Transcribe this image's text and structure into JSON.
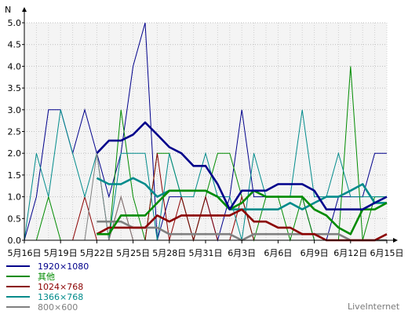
{
  "chart_data": {
    "type": "line",
    "ylabel": "N",
    "ylim": [
      0,
      5
    ],
    "y_ticks": [
      "0.0",
      "0.5",
      "1.0",
      "1.5",
      "2.0",
      "2.5",
      "3.0",
      "3.5",
      "4.0",
      "4.5",
      "5.0"
    ],
    "x": [
      "5月16日",
      "5月17日",
      "5月18日",
      "5月19日",
      "5月20日",
      "5月21日",
      "5月22日",
      "5月23日",
      "5月24日",
      "5月25日",
      "5月26日",
      "5月27日",
      "5月28日",
      "5月29日",
      "5月30日",
      "5月31日",
      "6月1日",
      "6月2日",
      "6月3日",
      "6月4日",
      "6月5日",
      "6月6日",
      "6月7日",
      "6月8日",
      "6月9日",
      "6月10日",
      "6月11日",
      "6月12日",
      "6月13日",
      "6月14日",
      "6月15日"
    ],
    "x_tick_labels": [
      {
        "index": 0,
        "label": "5月16日"
      },
      {
        "index": 3,
        "label": "5月19日"
      },
      {
        "index": 6,
        "label": "5月22日"
      },
      {
        "index": 9,
        "label": "5月25日"
      },
      {
        "index": 12,
        "label": "5月28日"
      },
      {
        "index": 15,
        "label": "5月31日"
      },
      {
        "index": 18,
        "label": "6月3日"
      },
      {
        "index": 21,
        "label": "6月6日"
      },
      {
        "index": 24,
        "label": "6月9日"
      },
      {
        "index": 27,
        "label": "6月12日"
      },
      {
        "index": 30,
        "label": "6月15日"
      }
    ],
    "grid": true,
    "background": "#f4f4f4",
    "watermark": "LiveInternet",
    "series": [
      {
        "name": "1920×1080",
        "color": "#00008b",
        "daily": [
          0,
          1,
          3,
          3,
          2,
          3,
          2,
          1,
          2,
          4,
          5,
          0,
          1,
          1,
          0,
          1,
          0,
          1,
          3,
          1,
          1,
          1,
          1,
          1,
          0,
          0,
          1,
          1,
          1,
          2,
          2
        ],
        "avg_start": 6,
        "avg": [
          2.0,
          2.29,
          2.29,
          2.43,
          2.71,
          2.43,
          2.14,
          2.0,
          1.71,
          1.71,
          1.29,
          0.71,
          1.14,
          1.14,
          1.14,
          1.29,
          1.29,
          1.29,
          1.14,
          0.71,
          0.71,
          0.71,
          0.71,
          0.86,
          1.0
        ]
      },
      {
        "name": "其他",
        "color": "#008b00",
        "daily": [
          0,
          0,
          1,
          0,
          0,
          0,
          0,
          0,
          3,
          1,
          0,
          2,
          2,
          1,
          0,
          1,
          2,
          2,
          1,
          0,
          1,
          1,
          0,
          1,
          0,
          0,
          0,
          4,
          0,
          1,
          1
        ],
        "avg_start": 6,
        "avg": [
          0.14,
          0.14,
          0.57,
          0.57,
          0.57,
          0.86,
          1.14,
          1.14,
          1.14,
          1.14,
          1.0,
          0.71,
          0.86,
          1.14,
          1.0,
          1.0,
          1.0,
          1.0,
          0.71,
          0.57,
          0.29,
          0.14,
          0.71,
          0.71,
          0.86
        ]
      },
      {
        "name": "1024×768",
        "color": "#8b0000",
        "daily": [
          0,
          0,
          0,
          0,
          0,
          1,
          0,
          0,
          1,
          0,
          0,
          2,
          0,
          1,
          0,
          1,
          0,
          0,
          1,
          0,
          0,
          0,
          0,
          0,
          0,
          0,
          0,
          0,
          0,
          0,
          0
        ],
        "avg_start": 6,
        "avg": [
          0.14,
          0.29,
          0.29,
          0.29,
          0.29,
          0.57,
          0.43,
          0.57,
          0.57,
          0.57,
          0.57,
          0.57,
          0.71,
          0.43,
          0.43,
          0.29,
          0.29,
          0.14,
          0.14,
          0.0,
          0.0,
          0.0,
          0.0,
          0.0,
          0.14
        ]
      },
      {
        "name": "1366×768",
        "color": "#008b8b",
        "daily": [
          0,
          2,
          1,
          3,
          2,
          1,
          2,
          0,
          2,
          2,
          2,
          0,
          2,
          1,
          1,
          2,
          1,
          1,
          0,
          2,
          1,
          1,
          1,
          3,
          1,
          1,
          2,
          1,
          1,
          1,
          1
        ],
        "avg_start": 6,
        "avg": [
          1.43,
          1.29,
          1.29,
          1.43,
          1.29,
          1.0,
          1.14,
          1.14,
          1.14,
          1.14,
          1.0,
          0.71,
          0.71,
          0.71,
          0.71,
          0.71,
          0.86,
          0.71,
          0.86,
          1.0,
          1.0,
          1.14,
          1.29,
          0.86,
          0.86
        ]
      },
      {
        "name": "800×600",
        "color": "#808080",
        "daily": [
          0,
          0,
          0,
          0,
          0,
          0,
          2,
          0,
          1,
          0,
          0,
          0,
          0,
          0,
          0,
          0,
          0,
          0,
          0,
          0,
          0,
          0,
          0,
          0,
          0,
          0,
          0,
          0,
          0,
          0,
          0
        ],
        "avg_start": 6,
        "avg": [
          0.43,
          0.43,
          0.43,
          0.29,
          0.29,
          0.29,
          0.14,
          0.14,
          0.14,
          0.14,
          0.14,
          0.14,
          0.0,
          0.14,
          0.14,
          0.14,
          0.14,
          0.14,
          0.14,
          0.14,
          0.14,
          0.0,
          0.0,
          0.0,
          0.0
        ]
      }
    ]
  }
}
